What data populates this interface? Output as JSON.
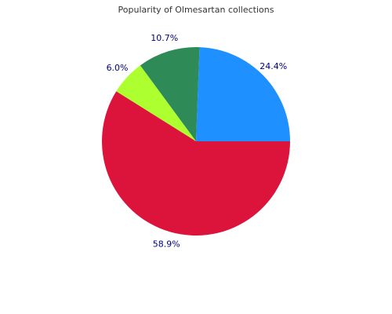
{
  "chart_data": {
    "type": "pie",
    "title": "Popularity of Olmesartan collections",
    "values": [
      24.4,
      10.7,
      6,
      58.9
    ],
    "value_labels": [
      "24.4%",
      "10.7%",
      "6.0%",
      "58.9%"
    ],
    "colors": [
      "#1e90ff",
      "#2e8b57",
      "#adff2f",
      "#dc143c"
    ]
  }
}
